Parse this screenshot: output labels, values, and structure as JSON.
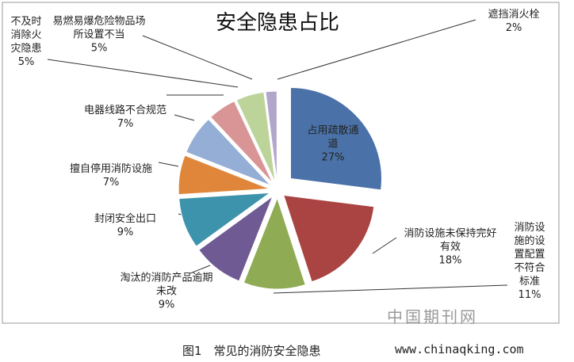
{
  "chart_data": {
    "type": "pie",
    "title": "安全隐患占比",
    "categories": [
      "占用疏散通道",
      "消防设施未保持完好有效",
      "消防设施的设置配置不符合标准",
      "淘汰的消防产品逾期未改",
      "封闭安全出口",
      "擅自停用消防设施",
      "电器线路不合规范",
      "不及时消除火灾隐患",
      "易燃易爆危险物品场所设置不当",
      "遮挡消火栓"
    ],
    "values": [
      27,
      18,
      11,
      9,
      9,
      7,
      7,
      5,
      5,
      2
    ],
    "value_labels": [
      "27%",
      "18%",
      "11%",
      "9%",
      "9%",
      "7%",
      "7%",
      "5%",
      "5%",
      "2%"
    ],
    "colors": [
      "#4a72a8",
      "#a94442",
      "#8fac54",
      "#6f5a94",
      "#3d93ab",
      "#e0863a",
      "#94aed6",
      "#d99595",
      "#bcd49a",
      "#b3a6cc"
    ]
  },
  "caption": "图1　常见的消防安全隐患",
  "watermark": "中国期刊网",
  "site": "www.chinaqking.com"
}
